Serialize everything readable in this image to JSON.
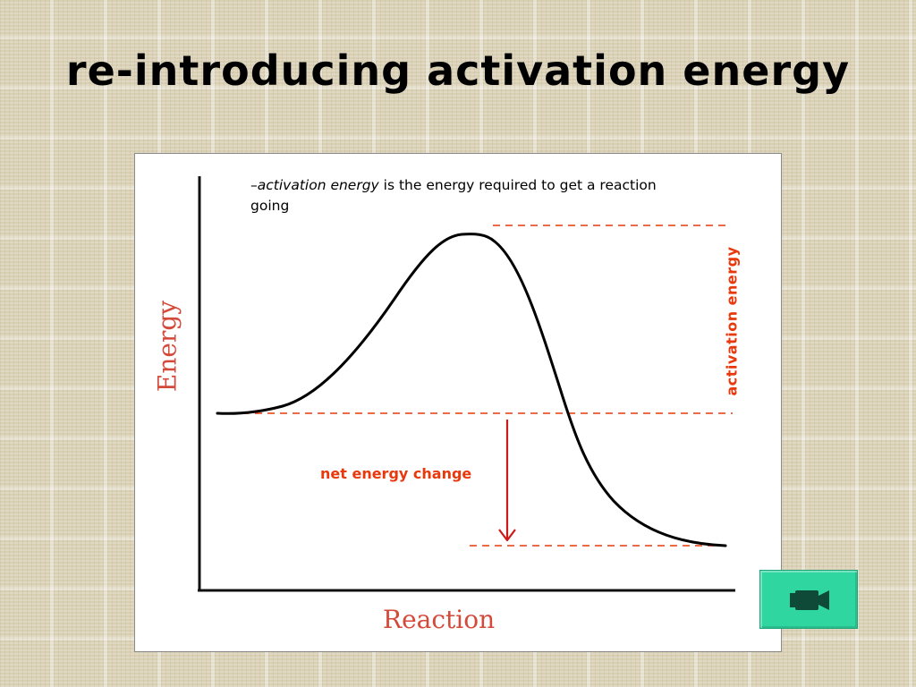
{
  "slide": {
    "title": "re-introducing activation energy"
  },
  "diagram": {
    "definition_bullet": "–",
    "definition_term": "activation energy",
    "definition_rest": " is the energy required to get a reaction going",
    "y_axis_label": "Energy",
    "x_axis_label": "Reaction",
    "activation_energy_label": "activation energy",
    "net_energy_change_label": "net energy change",
    "colors": {
      "curve": "#000000",
      "axis_labels": "#d44a3a",
      "annotations": "#e8380c"
    }
  },
  "movie_button": {
    "icon": "video-camera-icon",
    "color": "#2fd6a0"
  }
}
